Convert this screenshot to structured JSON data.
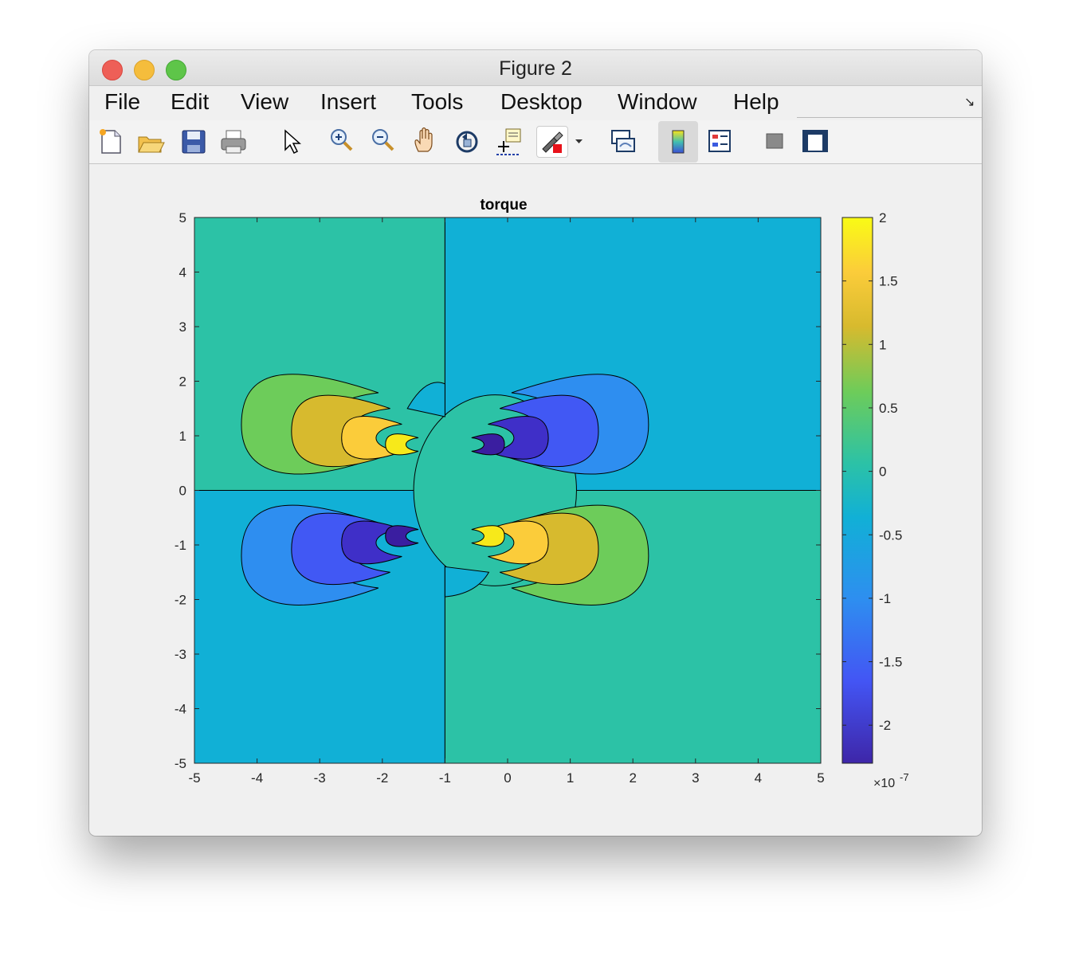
{
  "window": {
    "title": "Figure 2"
  },
  "menu": [
    "File",
    "Edit",
    "View",
    "Insert",
    "Tools",
    "Desktop",
    "Window",
    "Help"
  ],
  "toolbar": {
    "icons": [
      "new-figure-icon",
      "open-file-icon",
      "save-icon",
      "print-icon",
      "pointer-icon",
      "zoom-in-icon",
      "zoom-out-icon",
      "pan-hand-icon",
      "rotate-3d-icon",
      "data-cursor-icon",
      "brush-icon",
      "brush-dropdown-icon",
      "link-plot-icon",
      "colorbar-icon",
      "legend-icon",
      "hide-plot-tools-icon",
      "show-plot-tools-icon"
    ]
  },
  "chart_data": {
    "type": "contour",
    "title": "torque",
    "xlabel": "",
    "ylabel": "",
    "xlim": [
      -5,
      5
    ],
    "ylim": [
      -5,
      5
    ],
    "xticks": [
      "-5",
      "-4",
      "-3",
      "-2",
      "-1",
      "0",
      "1",
      "2",
      "3",
      "4",
      "5"
    ],
    "yticks": [
      "5",
      "4",
      "3",
      "2",
      "1",
      "0",
      "-1",
      "-2",
      "-3",
      "-4",
      "-5"
    ],
    "colorbar": {
      "ticks": [
        "2",
        "1.5",
        "1",
        "0.5",
        "0",
        "-0.5",
        "-1",
        "-1.5",
        "-2"
      ],
      "tick_values": [
        2,
        1.5,
        1,
        0.5,
        0,
        -0.5,
        -1,
        -1.5,
        -2
      ],
      "range": [
        -2.3,
        2.0
      ],
      "multiplier": "×10",
      "exponent": "-7",
      "colormap": "parula"
    },
    "quadrants": [
      {
        "name": "upper-left",
        "x": [
          -5,
          -1
        ],
        "y": [
          0,
          5
        ],
        "value": 0
      },
      {
        "name": "upper-right",
        "x": [
          -1,
          5
        ],
        "y": [
          0,
          5
        ],
        "value": -0.45
      },
      {
        "name": "lower-left",
        "x": [
          -5,
          -1
        ],
        "y": [
          -5,
          0
        ],
        "value": -0.45
      },
      {
        "name": "lower-right",
        "x": [
          -1,
          5
        ],
        "y": [
          -5,
          0
        ],
        "value": 0
      }
    ],
    "lobes": [
      {
        "center": [
          -3,
          1.2
        ],
        "levels": [
          0.5,
          1.0,
          1.5,
          2.0
        ]
      },
      {
        "center": [
          1,
          1.2
        ],
        "levels": [
          -1.0,
          -1.5,
          -2.0,
          -2.3
        ]
      },
      {
        "center": [
          -3,
          -1.2
        ],
        "levels": [
          -1.0,
          -1.5,
          -2.0,
          -2.3
        ]
      },
      {
        "center": [
          1,
          -1.2
        ],
        "levels": [
          0.5,
          1.0,
          1.5,
          2.0
        ]
      }
    ],
    "center_region": {
      "center": [
        -0.2,
        0
      ],
      "value": 0
    },
    "colors": {
      "0": "#2cc2a6",
      "-0.45": "#11b0d6",
      "0.5": "#6dcc5a",
      "1.0": "#d7ba2e",
      "1.5": "#fbcc3a",
      "2.0": "#f7e91a",
      "-1.0": "#2e8ef0",
      "-1.5": "#4158f4",
      "-2.0": "#3f2fc8",
      "-2.3": "#3a1ea0"
    }
  }
}
